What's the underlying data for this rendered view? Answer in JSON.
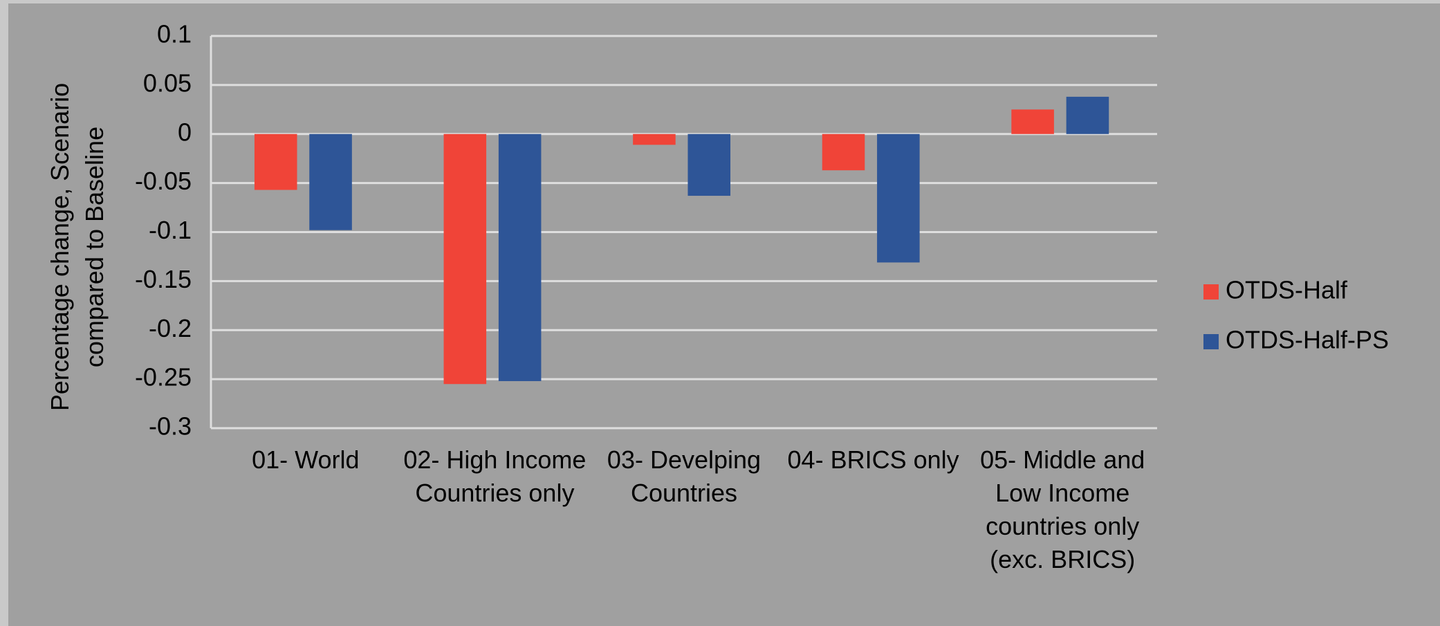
{
  "chart_data": {
    "type": "bar",
    "y_label": "Percentage change, Scenario compared to Baseline",
    "categories": [
      "01- World",
      "02- High Income Countries only",
      "03- Develping Countries",
      "04- BRICS only",
      "05- Middle and Low Income countries only (exc. BRICS)"
    ],
    "series": [
      {
        "name": "OTDS-Half",
        "color": "#f04438",
        "values": [
          -0.057,
          -0.255,
          -0.011,
          -0.037,
          0.025
        ]
      },
      {
        "name": "OTDS-Half-PS",
        "color": "#2e5597",
        "values": [
          -0.098,
          -0.252,
          -0.063,
          -0.131,
          0.038
        ]
      }
    ],
    "ylim": [
      -0.3,
      0.1
    ],
    "yticks": [
      0.1,
      0.05,
      0,
      -0.05,
      -0.1,
      -0.15,
      -0.2,
      -0.25,
      -0.3
    ],
    "grid": true,
    "legend": "right"
  }
}
